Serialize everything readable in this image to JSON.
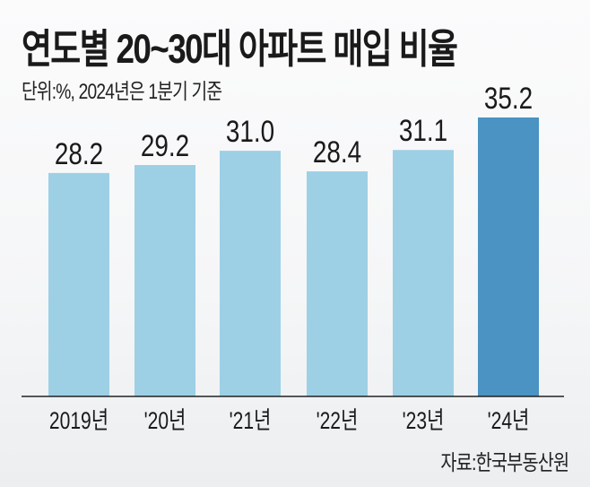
{
  "chart_data": {
    "type": "bar",
    "title": "연도별 20~30대 아파트 매입 비율",
    "subtitle": "단위:%, 2024년은 1분기 기준",
    "source": "자료:한국부동산원",
    "categories": [
      "2019년",
      "'20년",
      "'21년",
      "'22년",
      "'23년",
      "'24년"
    ],
    "values": [
      28.2,
      29.2,
      31.0,
      28.4,
      31.1,
      35.2
    ],
    "value_labels": [
      "28.2",
      "29.2",
      "31.0",
      "28.4",
      "31.1",
      "35.2"
    ],
    "ylim": [
      0,
      35.2
    ],
    "grid": false,
    "colors": {
      "default": "#9dd0e5",
      "highlight": "#4a93c3",
      "baseline": "#222222"
    },
    "highlight_index": 5
  }
}
